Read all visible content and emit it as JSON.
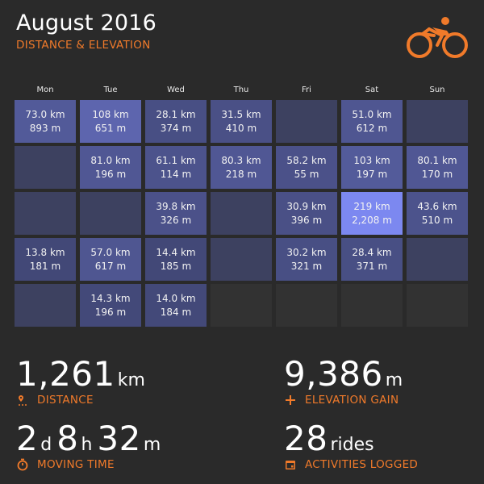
{
  "header": {
    "title": "August 2016",
    "subtitle": "DISTANCE & ELEVATION",
    "icon": "cyclist-icon",
    "accent": "#f07a2a"
  },
  "calendar": {
    "days": [
      "Mon",
      "Tue",
      "Wed",
      "Thu",
      "Fri",
      "Sat",
      "Sun"
    ],
    "cells": [
      {
        "d": "73.0 km",
        "e": "893 m",
        "i": 0.34
      },
      {
        "d": "108 km",
        "e": "651 m",
        "i": 0.5
      },
      {
        "d": "28.1 km",
        "e": "374 m",
        "i": 0.18
      },
      {
        "d": "31.5 km",
        "e": "410 m",
        "i": 0.2
      },
      {
        "d": "",
        "e": "",
        "i": 0
      },
      {
        "d": "51.0 km",
        "e": "612 m",
        "i": 0.28
      },
      {
        "d": "",
        "e": "",
        "i": 0
      },
      {
        "d": "",
        "e": "",
        "i": 0
      },
      {
        "d": "81.0 km",
        "e": "196 m",
        "i": 0.3
      },
      {
        "d": "61.1 km",
        "e": "114 m",
        "i": 0.24
      },
      {
        "d": "80.3 km",
        "e": "218 m",
        "i": 0.3
      },
      {
        "d": "58.2 km",
        "e": "55 m",
        "i": 0.22
      },
      {
        "d": "103 km",
        "e": "197 m",
        "i": 0.35
      },
      {
        "d": "80.1 km",
        "e": "170 m",
        "i": 0.3
      },
      {
        "d": "",
        "e": "",
        "i": 0
      },
      {
        "d": "",
        "e": "",
        "i": 0
      },
      {
        "d": "39.8 km",
        "e": "326 m",
        "i": 0.22
      },
      {
        "d": "",
        "e": "",
        "i": 0
      },
      {
        "d": "30.9 km",
        "e": "396 m",
        "i": 0.2
      },
      {
        "d": "219 km",
        "e": "2,208 m",
        "i": 1
      },
      {
        "d": "43.6 km",
        "e": "510 m",
        "i": 0.24
      },
      {
        "d": "13.8 km",
        "e": "181 m",
        "i": 0.08
      },
      {
        "d": "57.0 km",
        "e": "617 m",
        "i": 0.28
      },
      {
        "d": "14.4 km",
        "e": "185 m",
        "i": 0.08
      },
      {
        "d": "",
        "e": "",
        "i": 0
      },
      {
        "d": "30.2 km",
        "e": "321 m",
        "i": 0.18
      },
      {
        "d": "28.4 km",
        "e": "371 m",
        "i": 0.18
      },
      {
        "d": "",
        "e": "",
        "i": 0
      },
      {
        "d": "",
        "e": "",
        "i": 0
      },
      {
        "d": "14.3 km",
        "e": "196 m",
        "i": 0.1
      },
      {
        "d": "14.0 km",
        "e": "184 m",
        "i": 0.1
      },
      {
        "d": "",
        "e": "",
        "i": -1
      },
      {
        "d": "",
        "e": "",
        "i": -1
      },
      {
        "d": "",
        "e": "",
        "i": -1
      },
      {
        "d": "",
        "e": "",
        "i": -1
      }
    ]
  },
  "stats": {
    "distance": {
      "value": "1,261",
      "unit": "km",
      "label": "DISTANCE",
      "icon": "route-pin-icon"
    },
    "elevation": {
      "value": "9,386",
      "unit": "m",
      "label": "ELEVATION GAIN",
      "icon": "plus-icon"
    },
    "moving": {
      "v1": "2",
      "u1": "d",
      "v2": "8",
      "u2": "h",
      "v3": "32",
      "u3": "m",
      "label": "MOVING TIME",
      "icon": "stopwatch-icon"
    },
    "activities": {
      "value": "28",
      "unit": "rides",
      "label": "ACTIVITIES LOGGED",
      "icon": "calendar-icon"
    }
  }
}
